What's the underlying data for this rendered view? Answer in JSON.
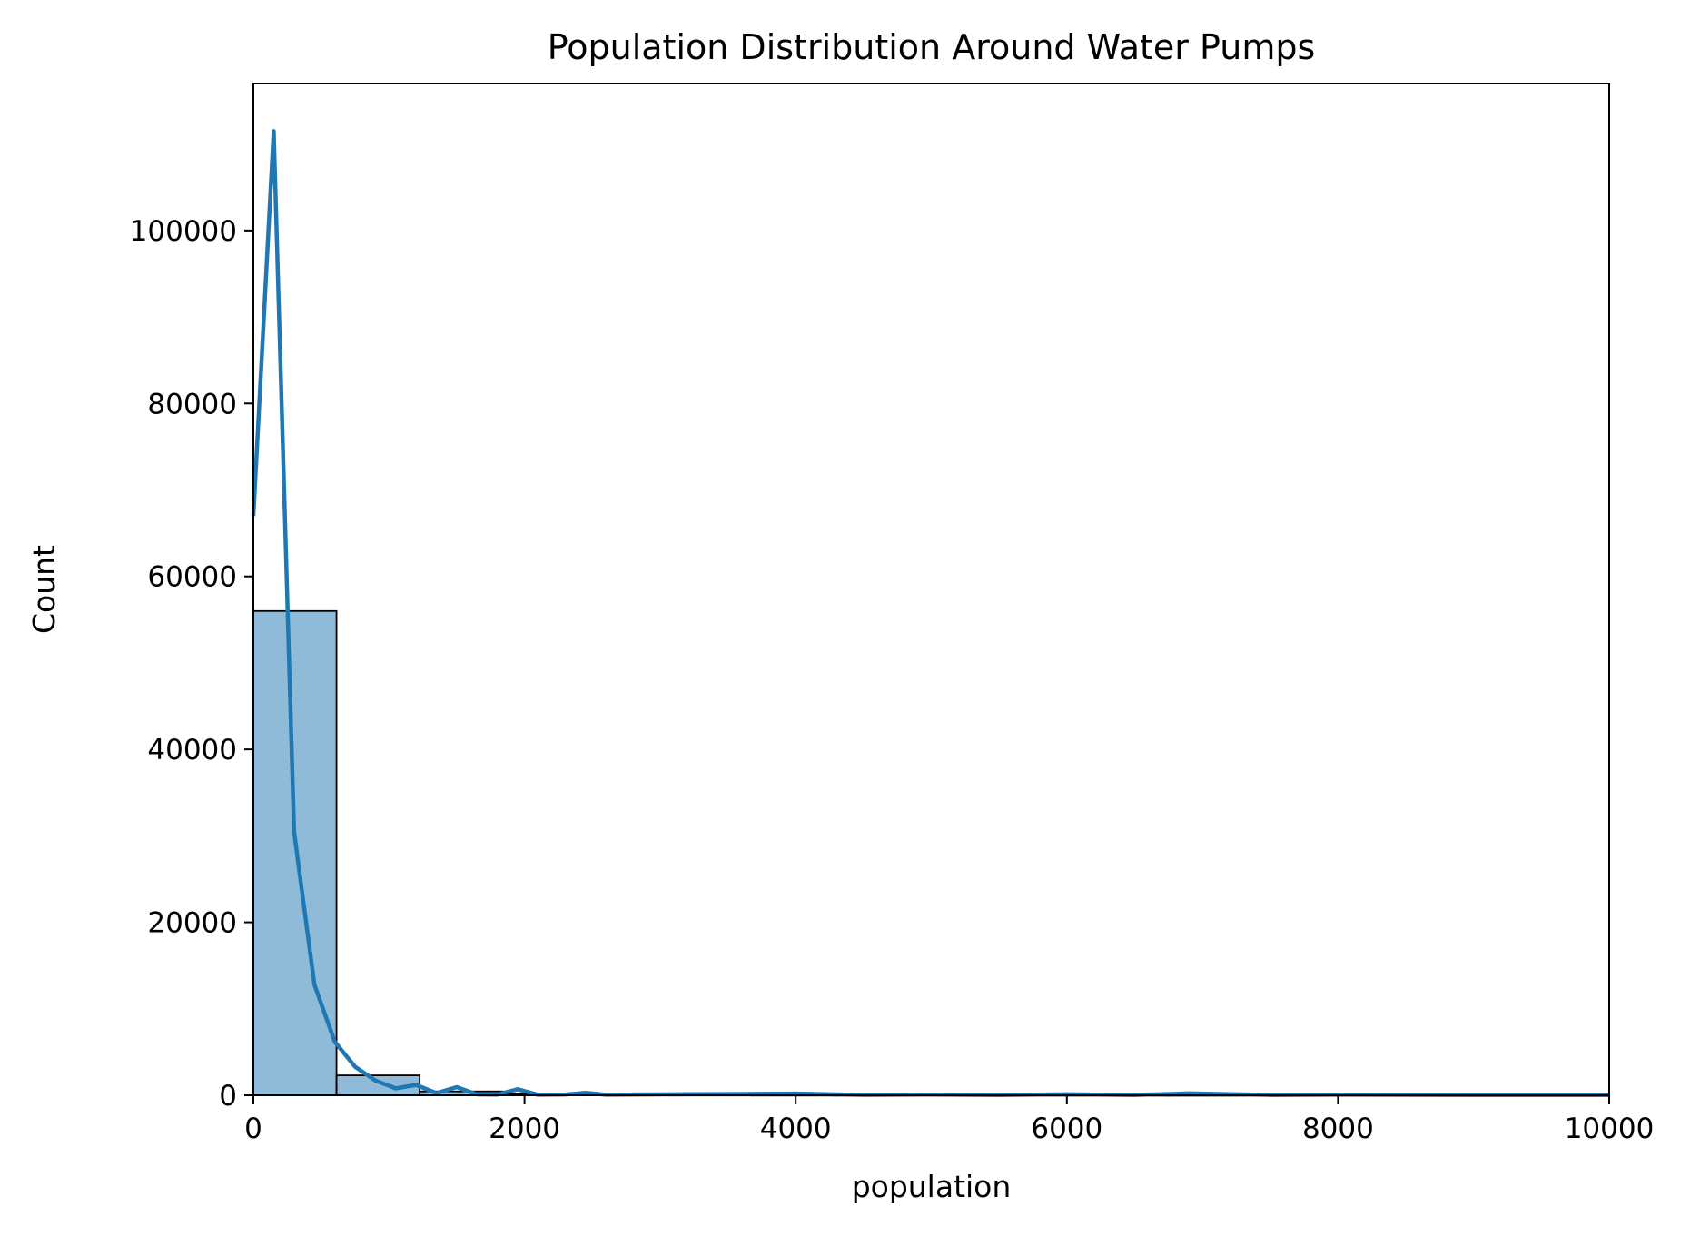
{
  "chart_data": {
    "type": "bar",
    "title": "Population Distribution Around Water Pumps",
    "xlabel": "population",
    "ylabel": "Count",
    "xlim": [
      0,
      10000
    ],
    "ylim": [
      0,
      117000
    ],
    "x_ticks": [
      "0",
      "2000",
      "4000",
      "6000",
      "8000",
      "10000"
    ],
    "y_ticks": [
      "0",
      "20000",
      "40000",
      "60000",
      "80000",
      "100000"
    ],
    "grid": false,
    "legend": "none",
    "bar_color": "#1f77b4",
    "bar_fill_opacity": 0.5,
    "bar_edge_color": "#000000",
    "kde_color": "#1f77b4",
    "histogram": {
      "bin_width": 613.3,
      "bins": [
        {
          "x0": 0,
          "x1": 613.3,
          "count": 56000
        },
        {
          "x0": 613.3,
          "x1": 1226.7,
          "count": 2300
        },
        {
          "x0": 1226.7,
          "x1": 1840,
          "count": 450
        },
        {
          "x0": 1840,
          "x1": 2453.3,
          "count": 160
        },
        {
          "x0": 2453.3,
          "x1": 3066.7,
          "count": 60
        },
        {
          "x0": 3066.7,
          "x1": 3680,
          "count": 30
        },
        {
          "x0": 3680,
          "x1": 4293.3,
          "count": 20
        },
        {
          "x0": 4293.3,
          "x1": 4906.7,
          "count": 10
        },
        {
          "x0": 4906.7,
          "x1": 5520,
          "count": 10
        },
        {
          "x0": 5520,
          "x1": 6133.3,
          "count": 5
        },
        {
          "x0": 6133.3,
          "x1": 6746.7,
          "count": 5
        },
        {
          "x0": 6746.7,
          "x1": 7360,
          "count": 5
        },
        {
          "x0": 7360,
          "x1": 7973.3,
          "count": 3
        },
        {
          "x0": 7973.3,
          "x1": 8586.7,
          "count": 3
        },
        {
          "x0": 8586.7,
          "x1": 9200,
          "count": 2
        },
        {
          "x0": 9200,
          "x1": 9813.3,
          "count": 2
        },
        {
          "x0": 9813.3,
          "x1": 10426.7,
          "count": 2
        }
      ]
    },
    "kde": {
      "x": [
        0,
        150,
        300,
        450,
        600,
        750,
        900,
        1050,
        1200,
        1350,
        1500,
        1650,
        1800,
        1950,
        2100,
        2300,
        2450,
        2600,
        3000,
        3500,
        4000,
        4500,
        5000,
        5500,
        6000,
        6500,
        6900,
        7500,
        8000,
        9000,
        10000
      ],
      "y": [
        67000,
        111500,
        30500,
        12800,
        6200,
        3300,
        1700,
        800,
        1200,
        250,
        950,
        100,
        80,
        700,
        60,
        90,
        280,
        60,
        100,
        150,
        200,
        40,
        80,
        30,
        120,
        30,
        220,
        30,
        60,
        30,
        20
      ]
    }
  }
}
